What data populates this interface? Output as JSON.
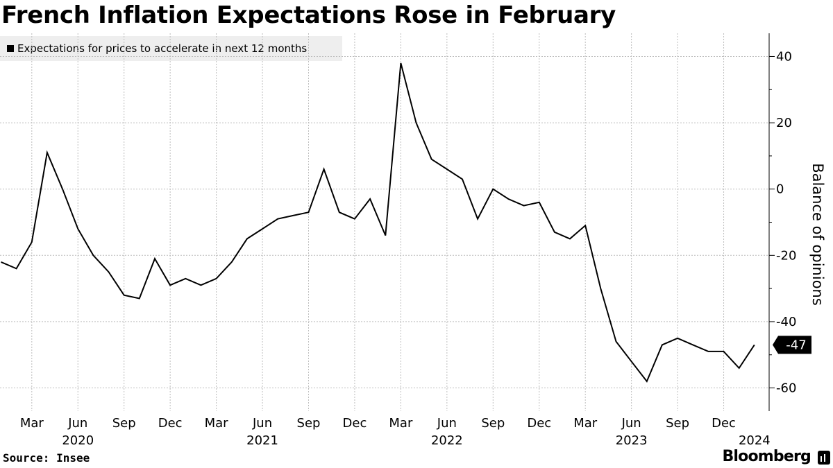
{
  "title": "French Inflation Expectations Rose in February",
  "source": "Source: Insee",
  "brand": "Bloomberg",
  "brand_icon": "bloomberg-bars-icon",
  "colors": {
    "line": "#000000",
    "grid": "#bdbdbd",
    "legend_bg": "#eeeeee",
    "callout_bg": "#000000"
  },
  "chart_data": {
    "type": "line",
    "title": "French Inflation Expectations Rose in February",
    "ylabel": "Balance of opinions",
    "xlabel": "",
    "ylim": [
      -67,
      47
    ],
    "y_ticks": [
      40,
      20,
      0,
      -20,
      -40,
      -60
    ],
    "y_tick_labels": [
      "40",
      "20",
      "0",
      "-20",
      "-40",
      "-60"
    ],
    "grid": true,
    "legend_placement": "top-left",
    "month_ticks": [
      {
        "date": "2020-03",
        "label": "Mar"
      },
      {
        "date": "2020-06",
        "label": "Jun"
      },
      {
        "date": "2020-09",
        "label": "Sep"
      },
      {
        "date": "2020-12",
        "label": "Dec"
      },
      {
        "date": "2021-03",
        "label": "Mar"
      },
      {
        "date": "2021-06",
        "label": "Jun"
      },
      {
        "date": "2021-09",
        "label": "Sep"
      },
      {
        "date": "2021-12",
        "label": "Dec"
      },
      {
        "date": "2022-03",
        "label": "Mar"
      },
      {
        "date": "2022-06",
        "label": "Jun"
      },
      {
        "date": "2022-09",
        "label": "Sep"
      },
      {
        "date": "2022-12",
        "label": "Dec"
      },
      {
        "date": "2023-03",
        "label": "Mar"
      },
      {
        "date": "2023-06",
        "label": "Jun"
      },
      {
        "date": "2023-09",
        "label": "Sep"
      },
      {
        "date": "2023-12",
        "label": "Dec"
      }
    ],
    "year_ticks": [
      {
        "date": "2020-06",
        "label": "2020"
      },
      {
        "date": "2021-06",
        "label": "2021"
      },
      {
        "date": "2022-06",
        "label": "2022"
      },
      {
        "date": "2023-06",
        "label": "2023"
      },
      {
        "date": "2024-02",
        "label": "2024"
      }
    ],
    "series": [
      {
        "name": "Expectations for prices to accelerate in next 12 months",
        "x": [
          "2020-01",
          "2020-02",
          "2020-03",
          "2020-04",
          "2020-05",
          "2020-06",
          "2020-07",
          "2020-08",
          "2020-09",
          "2020-10",
          "2020-11",
          "2020-12",
          "2021-01",
          "2021-02",
          "2021-03",
          "2021-04",
          "2021-05",
          "2021-06",
          "2021-07",
          "2021-08",
          "2021-09",
          "2021-10",
          "2021-11",
          "2021-12",
          "2022-01",
          "2022-02",
          "2022-03",
          "2022-04",
          "2022-05",
          "2022-06",
          "2022-07",
          "2022-08",
          "2022-09",
          "2022-10",
          "2022-11",
          "2022-12",
          "2023-01",
          "2023-02",
          "2023-03",
          "2023-04",
          "2023-05",
          "2023-06",
          "2023-07",
          "2023-08",
          "2023-09",
          "2023-10",
          "2023-11",
          "2023-12",
          "2024-01",
          "2024-02"
        ],
        "values": [
          -22,
          -24,
          -16,
          11,
          0,
          -12,
          -20,
          -25,
          -32,
          -33,
          -21,
          -29,
          -27,
          -29,
          -27,
          -22,
          -15,
          -12,
          -9,
          -8,
          -7,
          6,
          -7,
          -9,
          -3,
          -14,
          38,
          20,
          9,
          6,
          3,
          -9,
          0,
          -3,
          -5,
          -4,
          -13,
          -15,
          -11,
          -30,
          -46,
          -52,
          -58,
          -47,
          -45,
          -47,
          -49,
          -49,
          -54,
          -47
        ],
        "last_value_label": "-47"
      }
    ]
  }
}
